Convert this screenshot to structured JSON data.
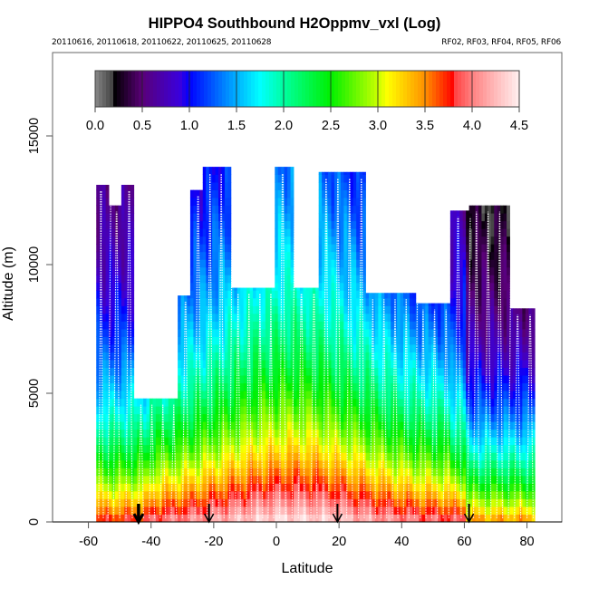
{
  "chart_data": {
    "type": "heatmap",
    "title": "HIPPO4 Southbound H2Oppmv_vxl (Log)",
    "subtitle_left": "20110616, 20110618, 20110622, 20110625, 20110628",
    "subtitle_right": "RF02, RF03, RF04, RF05, RF06",
    "xlabel": "Latitude",
    "ylabel": "Altitude (m)",
    "xlim": [
      -70,
      90
    ],
    "ylim": [
      0,
      18200
    ],
    "x_ticks": [
      -60,
      -40,
      -20,
      0,
      20,
      40,
      60,
      80
    ],
    "x_tick_labels": [
      "-60",
      "-40",
      "-20",
      "0",
      "20",
      "40",
      "60",
      "80"
    ],
    "y_ticks": [
      0,
      5000,
      10000,
      15000
    ],
    "y_tick_labels": [
      "0",
      "5000",
      "10000",
      "15000"
    ],
    "colorbar": {
      "range": [
        0.0,
        4.5
      ],
      "ticks": [
        0.0,
        0.5,
        1.0,
        1.5,
        2.0,
        2.5,
        3.0,
        3.5,
        4.0,
        4.5
      ],
      "tick_labels": [
        "0.0",
        "0.5",
        "1.0",
        "1.5",
        "2.0",
        "2.5",
        "3.0",
        "3.5",
        "4.0",
        "4.5"
      ],
      "stops": [
        {
          "v": 0.0,
          "color": "#888888"
        },
        {
          "v": 0.18,
          "color": "#444444"
        },
        {
          "v": 0.2,
          "color": "#000000"
        },
        {
          "v": 0.5,
          "color": "#5a0078"
        },
        {
          "v": 0.9,
          "color": "#3a00dd"
        },
        {
          "v": 1.0,
          "color": "#0000ff"
        },
        {
          "v": 1.5,
          "color": "#00b0ff"
        },
        {
          "v": 1.75,
          "color": "#00ffff"
        },
        {
          "v": 2.0,
          "color": "#00ffa0"
        },
        {
          "v": 2.5,
          "color": "#00f000"
        },
        {
          "v": 3.0,
          "color": "#c8ff00"
        },
        {
          "v": 3.1,
          "color": "#ffff00"
        },
        {
          "v": 3.5,
          "color": "#ff9000"
        },
        {
          "v": 3.8,
          "color": "#ff0000"
        },
        {
          "v": 3.82,
          "color": "#ff4444"
        },
        {
          "v": 4.0,
          "color": "#ff8080"
        },
        {
          "v": 4.2,
          "color": "#ffb0b0"
        },
        {
          "v": 4.5,
          "color": "#fff0f0"
        }
      ]
    },
    "profile_envelope": [
      {
        "lat_from": -57.5,
        "lat_to": -53,
        "top_alt": 13100
      },
      {
        "lat_from": -53,
        "lat_to": -49,
        "top_alt": 12300
      },
      {
        "lat_from": -49,
        "lat_to": -45,
        "top_alt": 13100
      },
      {
        "lat_from": -45,
        "lat_to": -31,
        "top_alt": 4800
      },
      {
        "lat_from": -31,
        "lat_to": -27,
        "top_alt": 8800
      },
      {
        "lat_from": -27,
        "lat_to": -23,
        "top_alt": 12900
      },
      {
        "lat_from": -23,
        "lat_to": -14,
        "top_alt": 13800
      },
      {
        "lat_from": -14,
        "lat_to": 0,
        "top_alt": 9100
      },
      {
        "lat_from": 0,
        "lat_to": 6,
        "top_alt": 13800
      },
      {
        "lat_from": 6,
        "lat_to": 14,
        "top_alt": 9100
      },
      {
        "lat_from": 14,
        "lat_to": 29,
        "top_alt": 13600
      },
      {
        "lat_from": 29,
        "lat_to": 45,
        "top_alt": 8900
      },
      {
        "lat_from": 45,
        "lat_to": 56,
        "top_alt": 8500
      },
      {
        "lat_from": 56,
        "lat_to": 62,
        "top_alt": 12100
      },
      {
        "lat_from": 62,
        "lat_to": 75,
        "top_alt": 12300
      },
      {
        "lat_from": 75,
        "lat_to": 83,
        "top_alt": 8300
      }
    ],
    "markers": {
      "type": "down-arrow",
      "latitudes": [
        -44,
        -21.5,
        19.5,
        61.5
      ]
    }
  }
}
